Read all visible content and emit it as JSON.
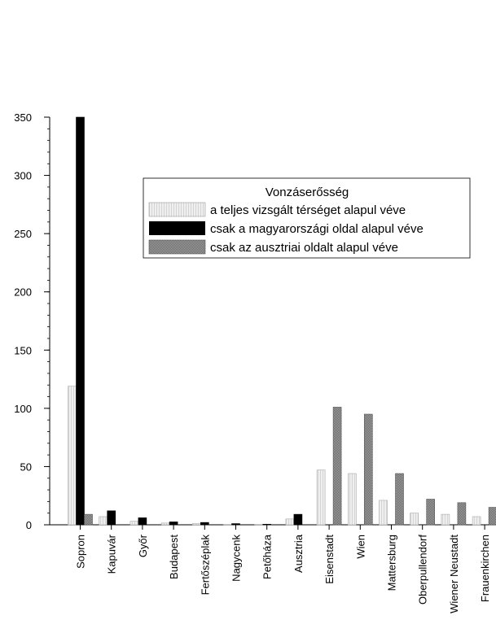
{
  "chart_data": {
    "type": "bar",
    "categories": [
      "Sopron",
      "Kapuvár",
      "Győr",
      "Budapest",
      "Fertőszéplak",
      "Nagycenk",
      "Petőháza",
      "Ausztria",
      "Eisenstadt",
      "Wien",
      "Mattersburg",
      "Oberpullendorf",
      "Wiener Neustadt",
      "Frauenkirchen"
    ],
    "series": [
      {
        "name": "a teljes vizsgált térséget alapul véve",
        "values": [
          119,
          7,
          3,
          1.5,
          1,
          0.3,
          0.3,
          5,
          47,
          44,
          21,
          10,
          9,
          7
        ]
      },
      {
        "name": "csak a magyarországi oldal alapul véve",
        "values": [
          350,
          12,
          6,
          2.5,
          2,
          1,
          0.5,
          9,
          0,
          0,
          0,
          0,
          0,
          0
        ]
      },
      {
        "name": "csak az ausztriai oldalt alapul véve",
        "values": [
          9,
          0,
          0,
          0,
          0,
          0,
          0,
          0,
          101,
          95,
          44,
          22,
          19,
          15
        ]
      }
    ],
    "title": "",
    "xlabel": "",
    "ylabel": "",
    "ylim": [
      0,
      350
    ],
    "yticks": [
      0,
      50,
      100,
      150,
      200,
      250,
      300,
      350
    ],
    "grid": false,
    "legend": {
      "title": "Vonzáserősség",
      "placement": "upper-right"
    },
    "colors": {
      "series_0": "#e8e8e8",
      "series_1": "#000000",
      "series_2": "#8f8f8f"
    }
  }
}
